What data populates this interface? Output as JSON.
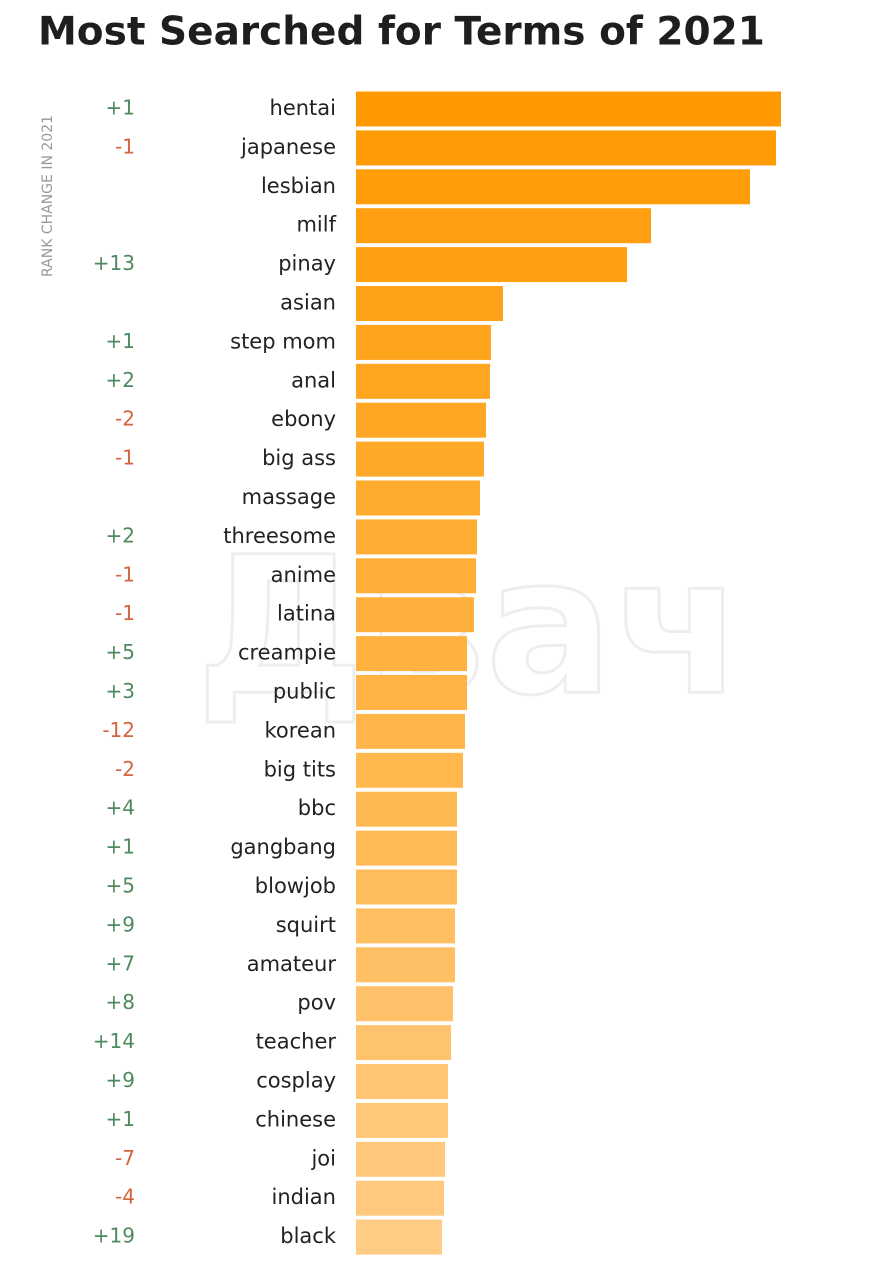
{
  "chart_data": {
    "type": "bar",
    "orientation": "horizontal",
    "title": "Most Searched for Terms of 2021",
    "side_label": "RANK CHANGE IN 2021",
    "watermark": "Двач",
    "categories": [
      "hentai",
      "japanese",
      "lesbian",
      "milf",
      "pinay",
      "asian",
      "step mom",
      "anal",
      "ebony",
      "big ass",
      "massage",
      "threesome",
      "anime",
      "latina",
      "creampie",
      "public",
      "korean",
      "big tits",
      "bbc",
      "gangbang",
      "blowjob",
      "squirt",
      "amateur",
      "pov",
      "teacher",
      "cosplay",
      "chinese",
      "joi",
      "indian",
      "black"
    ],
    "values": [
      425,
      420,
      394,
      295,
      271,
      147,
      135,
      134,
      130,
      128,
      124,
      121,
      120,
      118,
      111,
      111,
      109,
      107,
      101,
      101,
      101,
      99,
      99,
      97,
      95,
      92,
      92,
      89,
      88,
      86
    ],
    "rank_change": [
      "+1",
      "-1",
      null,
      null,
      "+13",
      null,
      "+1",
      "+2",
      "-2",
      "-1",
      null,
      "+2",
      "-1",
      "-1",
      "+5",
      "+3",
      "-12",
      "-2",
      "+4",
      "+1",
      "+5",
      "+9",
      "+7",
      "+8",
      "+14",
      "+9",
      "+1",
      "-7",
      "-4",
      "+19"
    ],
    "color": "#ff9900",
    "color_end": "#ffcc85",
    "up_color": "#4e8a5e",
    "down_color": "#d5633d"
  }
}
